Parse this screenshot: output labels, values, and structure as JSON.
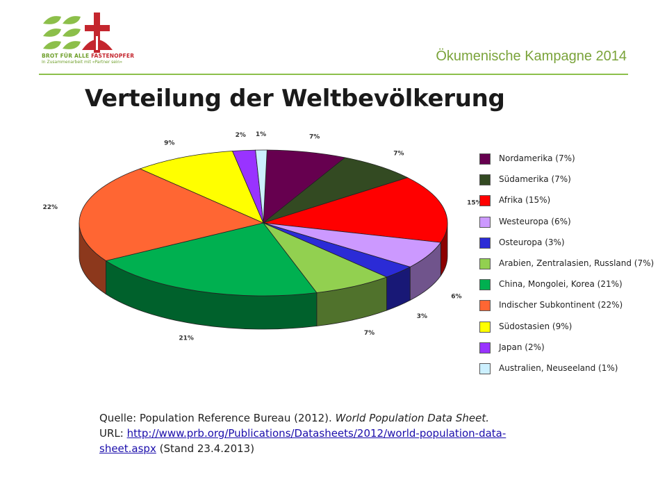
{
  "header": {
    "campaign": "Ökumenische Kampagne 2014",
    "logo_text_left": "BROT FÜR ALLE",
    "logo_text_right": "FASTENOPFER",
    "logo_subtext": "In Zusammenarbeit mit «Partner sein»"
  },
  "title": "Verteilung der Weltbevölkerung",
  "colors": {
    "header_green": "#8cbf4a",
    "campaign_green": "#7aa33a",
    "logo_red": "#c4262e"
  },
  "chart_data": {
    "type": "pie",
    "style": "3d",
    "legend_position": "right",
    "series": [
      {
        "name": "Nordamerika (7%)",
        "value": 7,
        "label": "7%",
        "color": "#66004f"
      },
      {
        "name": "Südamerika (7%)",
        "value": 7,
        "label": "7%",
        "color": "#334a22"
      },
      {
        "name": "Afrika (15%)",
        "value": 15,
        "label": "15%",
        "color": "#ff0000"
      },
      {
        "name": "Westeuropa (6%)",
        "value": 6,
        "label": "6%",
        "color": "#cc99ff"
      },
      {
        "name": "Osteuropa (3%)",
        "value": 3,
        "label": "3%",
        "color": "#2b2bd6"
      },
      {
        "name": "Arabien, Zentralasien, Russland (7%)",
        "value": 7,
        "label": "7%",
        "color": "#92d050"
      },
      {
        "name": "China, Mongolei, Korea (21%)",
        "value": 21,
        "label": "21%",
        "color": "#00b050"
      },
      {
        "name": "Indischer Subkontinent (22%)",
        "value": 22,
        "label": "22%",
        "color": "#ff6633"
      },
      {
        "name": "Südostasien (9%)",
        "value": 9,
        "label": "9%",
        "color": "#ffff00"
      },
      {
        "name": "Japan (2%)",
        "value": 2,
        "label": "2%",
        "color": "#9933ff"
      },
      {
        "name": "Australien, Neuseeland (1%)",
        "value": 1,
        "label": "1%",
        "color": "#ccf0ff"
      }
    ]
  },
  "source": {
    "prefix": "Quelle: Population Reference Bureau (2012). ",
    "work": "World Population Data Sheet.",
    "url_label": "URL: ",
    "url": "http://www.prb.org/Publications/Datasheets/2012/world-population-data-sheet.aspx",
    "suffix": " (Stand 23.4.2013)"
  }
}
